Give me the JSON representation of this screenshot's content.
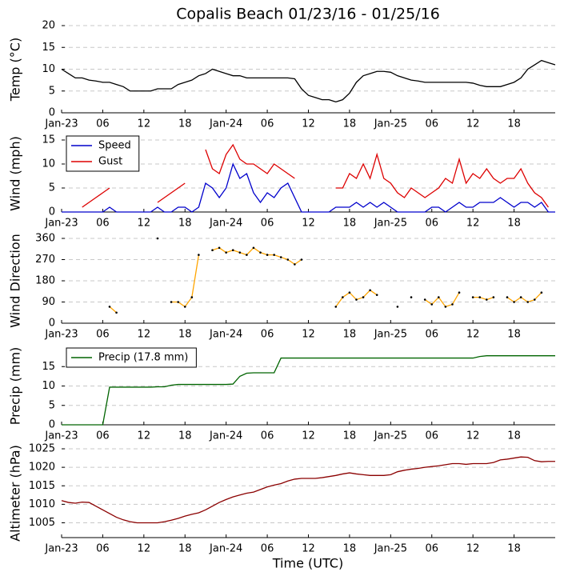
{
  "chart_data": [
    {
      "type": "line",
      "title": "Copalis Beach 01/23/16 - 01/25/16",
      "ylabel": "Temp (°C)",
      "x": [
        0,
        1,
        2,
        3,
        4,
        5,
        6,
        7,
        8,
        9,
        10,
        11,
        12,
        13,
        14,
        15,
        16,
        17,
        18,
        19,
        20,
        21,
        22,
        23,
        24,
        25,
        26,
        27,
        28,
        29,
        30,
        31,
        32,
        33,
        34,
        35,
        36,
        37,
        38,
        39,
        40,
        41,
        42,
        43,
        44,
        45,
        46,
        47,
        48,
        49,
        50,
        51,
        52,
        53,
        54,
        55,
        56,
        57,
        58,
        59,
        60,
        61,
        62,
        63,
        64,
        65,
        66,
        67,
        68,
        69,
        70,
        71,
        72
      ],
      "series": [
        {
          "color": "#000000",
          "values": [
            10,
            9,
            8,
            8,
            7.5,
            7.3,
            7,
            7,
            6.5,
            6,
            5,
            5,
            5,
            5,
            5.5,
            5.5,
            5.5,
            6.5,
            7,
            7.5,
            8.5,
            9,
            10,
            9.5,
            9,
            8.5,
            8.5,
            8,
            8,
            8,
            8,
            8,
            8,
            8,
            7.8,
            5.5,
            4,
            3.5,
            3,
            3,
            2.5,
            3,
            4.5,
            7,
            8.5,
            9,
            9.5,
            9.5,
            9.3,
            8.5,
            8,
            7.5,
            7.3,
            7,
            7,
            7,
            7,
            7,
            7,
            7,
            6.8,
            6.3,
            6,
            6,
            6,
            6.5,
            7,
            8,
            10,
            11,
            12,
            11.5,
            11
          ]
        }
      ],
      "xlim": [
        0,
        72
      ],
      "xticks": [
        {
          "value": 0,
          "label": "Jan-23"
        },
        {
          "value": 6,
          "label": "06"
        },
        {
          "value": 12,
          "label": "12"
        },
        {
          "value": 18,
          "label": "18"
        },
        {
          "value": 24,
          "label": "Jan-24"
        },
        {
          "value": 30,
          "label": "06"
        },
        {
          "value": 36,
          "label": "12"
        },
        {
          "value": 42,
          "label": "18"
        },
        {
          "value": 48,
          "label": "Jan-25"
        },
        {
          "value": 54,
          "label": "06"
        },
        {
          "value": 60,
          "label": "12"
        },
        {
          "value": 66,
          "label": "18"
        }
      ],
      "ylim": [
        0,
        20
      ],
      "yticks": [
        0,
        5,
        10,
        15,
        20
      ],
      "grid": true
    },
    {
      "type": "line",
      "ylabel": "Wind (mph)",
      "legend": "upper left",
      "x": [
        0,
        1,
        2,
        3,
        4,
        5,
        6,
        7,
        8,
        9,
        10,
        11,
        12,
        13,
        14,
        15,
        16,
        17,
        18,
        19,
        20,
        21,
        22,
        23,
        24,
        25,
        26,
        27,
        28,
        29,
        30,
        31,
        32,
        33,
        34,
        35,
        36,
        37,
        38,
        39,
        40,
        41,
        42,
        43,
        44,
        45,
        46,
        47,
        48,
        49,
        50,
        51,
        52,
        53,
        54,
        55,
        56,
        57,
        58,
        59,
        60,
        61,
        62,
        63,
        64,
        65,
        66,
        67,
        68,
        69,
        70,
        71,
        72
      ],
      "series": [
        {
          "name": "Speed",
          "color": "#0000cc",
          "values": [
            0,
            0,
            0,
            0,
            0,
            0,
            0,
            1,
            0,
            0,
            0,
            0,
            0,
            0,
            1,
            0,
            0,
            1,
            1,
            0,
            1,
            6,
            5,
            3,
            5,
            10,
            7,
            8,
            4,
            2,
            4,
            3,
            5,
            6,
            3,
            0,
            0,
            0,
            0,
            0,
            1,
            1,
            1,
            2,
            1,
            2,
            1,
            2,
            1,
            0,
            0,
            0,
            0,
            0,
            1,
            1,
            0,
            1,
            2,
            1,
            1,
            2,
            2,
            2,
            3,
            2,
            1,
            2,
            2,
            1,
            2,
            0,
            0
          ]
        },
        {
          "name": "Gust",
          "color": "#dd0000",
          "values": [
            null,
            null,
            null,
            1,
            2,
            3,
            4,
            5,
            null,
            null,
            null,
            null,
            null,
            null,
            2,
            3,
            4,
            5,
            6,
            null,
            null,
            13,
            9,
            8,
            12,
            14,
            11,
            10,
            10,
            9,
            8,
            10,
            9,
            8,
            7,
            null,
            null,
            null,
            null,
            null,
            5,
            5,
            8,
            7,
            10,
            7,
            12,
            7,
            6,
            4,
            3,
            5,
            4,
            3,
            4,
            5,
            7,
            6,
            11,
            6,
            8,
            7,
            9,
            7,
            6,
            7,
            7,
            9,
            6,
            4,
            3,
            1,
            null
          ]
        }
      ],
      "xlim": [
        0,
        72
      ],
      "xticks": [
        {
          "value": 0,
          "label": "Jan-23"
        },
        {
          "value": 6,
          "label": "06"
        },
        {
          "value": 12,
          "label": "12"
        },
        {
          "value": 18,
          "label": "18"
        },
        {
          "value": 24,
          "label": "Jan-24"
        },
        {
          "value": 30,
          "label": "06"
        },
        {
          "value": 36,
          "label": "12"
        },
        {
          "value": 42,
          "label": "18"
        },
        {
          "value": 48,
          "label": "Jan-25"
        },
        {
          "value": 54,
          "label": "06"
        },
        {
          "value": 60,
          "label": "12"
        },
        {
          "value": 66,
          "label": "18"
        }
      ],
      "ylim": [
        0,
        16
      ],
      "yticks": [
        0,
        5,
        10,
        15
      ],
      "grid": true
    },
    {
      "type": "line",
      "ylabel": "Wind Direction",
      "markers": true,
      "x": [
        0,
        1,
        2,
        3,
        4,
        5,
        6,
        7,
        8,
        9,
        10,
        11,
        12,
        13,
        14,
        15,
        16,
        17,
        18,
        19,
        20,
        21,
        22,
        23,
        24,
        25,
        26,
        27,
        28,
        29,
        30,
        31,
        32,
        33,
        34,
        35,
        36,
        37,
        38,
        39,
        40,
        41,
        42,
        43,
        44,
        45,
        46,
        47,
        48,
        49,
        50,
        51,
        52,
        53,
        54,
        55,
        56,
        57,
        58,
        59,
        60,
        61,
        62,
        63,
        64,
        65,
        66,
        67,
        68,
        69,
        70,
        71,
        72
      ],
      "series": [
        {
          "color": "#ffa500",
          "values": [
            null,
            null,
            null,
            null,
            null,
            null,
            null,
            70,
            45,
            null,
            null,
            null,
            null,
            null,
            360,
            null,
            90,
            90,
            70,
            110,
            290,
            null,
            310,
            320,
            300,
            310,
            300,
            290,
            320,
            300,
            290,
            290,
            280,
            270,
            250,
            270,
            null,
            null,
            null,
            null,
            70,
            110,
            130,
            100,
            110,
            140,
            120,
            null,
            null,
            70,
            null,
            110,
            null,
            100,
            80,
            110,
            70,
            80,
            130,
            null,
            110,
            110,
            100,
            110,
            null,
            110,
            90,
            110,
            90,
            100,
            130,
            null,
            null
          ]
        }
      ],
      "xlim": [
        0,
        72
      ],
      "xticks": [
        {
          "value": 0,
          "label": "Jan-23"
        },
        {
          "value": 6,
          "label": "06"
        },
        {
          "value": 12,
          "label": "12"
        },
        {
          "value": 18,
          "label": "18"
        },
        {
          "value": 24,
          "label": "Jan-24"
        },
        {
          "value": 30,
          "label": "06"
        },
        {
          "value": 36,
          "label": "12"
        },
        {
          "value": 42,
          "label": "18"
        },
        {
          "value": 48,
          "label": "Jan-25"
        },
        {
          "value": 54,
          "label": "06"
        },
        {
          "value": 60,
          "label": "12"
        },
        {
          "value": 66,
          "label": "18"
        }
      ],
      "ylim": [
        0,
        360
      ],
      "yticks": [
        0,
        90,
        180,
        270,
        360
      ],
      "grid": true
    },
    {
      "type": "line",
      "ylabel": "Precip (mm)",
      "legend": "upper left",
      "x": [
        0,
        1,
        2,
        3,
        4,
        5,
        6,
        7,
        8,
        9,
        10,
        11,
        12,
        13,
        14,
        15,
        16,
        17,
        18,
        19,
        20,
        21,
        22,
        23,
        24,
        25,
        26,
        27,
        28,
        29,
        30,
        31,
        32,
        33,
        34,
        35,
        36,
        37,
        38,
        39,
        40,
        41,
        42,
        43,
        44,
        45,
        46,
        47,
        48,
        49,
        50,
        51,
        52,
        53,
        54,
        55,
        56,
        57,
        58,
        59,
        60,
        61,
        62,
        63,
        64,
        65,
        66,
        67,
        68,
        69,
        70,
        71,
        72
      ],
      "series": [
        {
          "name": "Precip (17.8 mm)",
          "color": "#006400",
          "values": [
            0,
            0,
            0,
            0,
            0,
            0,
            0,
            9.7,
            9.7,
            9.7,
            9.7,
            9.7,
            9.7,
            9.7,
            9.8,
            9.8,
            10.2,
            10.4,
            10.4,
            10.4,
            10.4,
            10.4,
            10.4,
            10.4,
            10.4,
            10.5,
            12.5,
            13.3,
            13.4,
            13.4,
            13.4,
            13.4,
            17.2,
            17.2,
            17.2,
            17.2,
            17.2,
            17.2,
            17.2,
            17.2,
            17.2,
            17.2,
            17.2,
            17.2,
            17.2,
            17.2,
            17.2,
            17.2,
            17.2,
            17.2,
            17.2,
            17.2,
            17.2,
            17.2,
            17.2,
            17.2,
            17.2,
            17.2,
            17.2,
            17.2,
            17.2,
            17.6,
            17.8,
            17.8,
            17.8,
            17.8,
            17.8,
            17.8,
            17.8,
            17.8,
            17.8,
            17.8,
            17.8
          ]
        }
      ],
      "xlim": [
        0,
        72
      ],
      "xticks": [
        {
          "value": 0,
          "label": "Jan-23"
        },
        {
          "value": 6,
          "label": "06"
        },
        {
          "value": 12,
          "label": "12"
        },
        {
          "value": 18,
          "label": "18"
        },
        {
          "value": 24,
          "label": "Jan-24"
        },
        {
          "value": 30,
          "label": "06"
        },
        {
          "value": 36,
          "label": "12"
        },
        {
          "value": 42,
          "label": "18"
        },
        {
          "value": 48,
          "label": "Jan-25"
        },
        {
          "value": 54,
          "label": "06"
        },
        {
          "value": 60,
          "label": "12"
        },
        {
          "value": 66,
          "label": "18"
        }
      ],
      "ylim": [
        0,
        20
      ],
      "yticks": [
        0,
        5,
        10,
        15
      ],
      "grid": true
    },
    {
      "type": "line",
      "ylabel": "Altimeter (hPa)",
      "xlabel": "Time (UTC)",
      "x": [
        0,
        1,
        2,
        3,
        4,
        5,
        6,
        7,
        8,
        9,
        10,
        11,
        12,
        13,
        14,
        15,
        16,
        17,
        18,
        19,
        20,
        21,
        22,
        23,
        24,
        25,
        26,
        27,
        28,
        29,
        30,
        31,
        32,
        33,
        34,
        35,
        36,
        37,
        38,
        39,
        40,
        41,
        42,
        43,
        44,
        45,
        46,
        47,
        48,
        49,
        50,
        51,
        52,
        53,
        54,
        55,
        56,
        57,
        58,
        59,
        60,
        61,
        62,
        63,
        64,
        65,
        66,
        67,
        68,
        69,
        70,
        71,
        72
      ],
      "series": [
        {
          "color": "#8b0000",
          "values": [
            1011,
            1010.5,
            1010.3,
            1010.6,
            1010.5,
            1009.5,
            1008.5,
            1007.5,
            1006.5,
            1005.8,
            1005.3,
            1005,
            1005,
            1005,
            1005,
            1005.3,
            1005.7,
            1006.2,
            1006.8,
            1007.3,
            1007.7,
            1008.5,
            1009.5,
            1010.5,
            1011.3,
            1012,
            1012.5,
            1013,
            1013.3,
            1014,
            1014.7,
            1015.2,
            1015.6,
            1016.3,
            1016.8,
            1017,
            1017,
            1017,
            1017.2,
            1017.5,
            1017.8,
            1018.2,
            1018.5,
            1018.2,
            1018,
            1017.8,
            1017.8,
            1017.8,
            1018,
            1018.8,
            1019.2,
            1019.5,
            1019.7,
            1020,
            1020.2,
            1020.4,
            1020.7,
            1021,
            1021,
            1020.8,
            1021,
            1021,
            1021,
            1021.3,
            1022,
            1022.2,
            1022.5,
            1022.8,
            1022.7,
            1021.8,
            1021.5,
            1021.6,
            1021.6
          ]
        }
      ],
      "xlim": [
        0,
        72
      ],
      "xticks": [
        {
          "value": 0,
          "label": "Jan-23"
        },
        {
          "value": 6,
          "label": "06"
        },
        {
          "value": 12,
          "label": "12"
        },
        {
          "value": 18,
          "label": "18"
        },
        {
          "value": 24,
          "label": "Jan-24"
        },
        {
          "value": 30,
          "label": "06"
        },
        {
          "value": 36,
          "label": "12"
        },
        {
          "value": 42,
          "label": "18"
        },
        {
          "value": 48,
          "label": "Jan-25"
        },
        {
          "value": 54,
          "label": "06"
        },
        {
          "value": 60,
          "label": "12"
        },
        {
          "value": 66,
          "label": "18"
        }
      ],
      "ylim": [
        1001,
        1025
      ],
      "yticks": [
        1005,
        1010,
        1015,
        1020,
        1025
      ],
      "grid": true
    }
  ]
}
